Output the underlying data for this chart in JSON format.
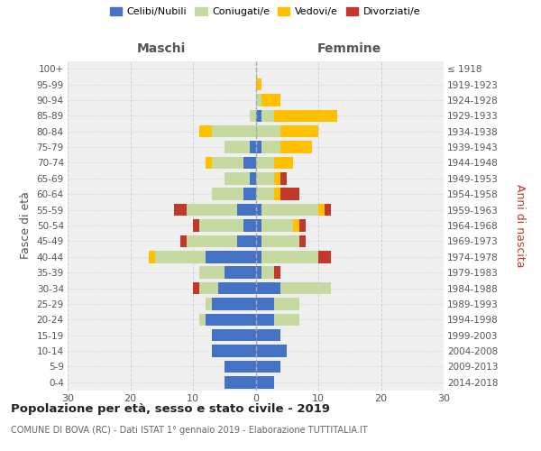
{
  "age_groups": [
    "0-4",
    "5-9",
    "10-14",
    "15-19",
    "20-24",
    "25-29",
    "30-34",
    "35-39",
    "40-44",
    "45-49",
    "50-54",
    "55-59",
    "60-64",
    "65-69",
    "70-74",
    "75-79",
    "80-84",
    "85-89",
    "90-94",
    "95-99",
    "100+"
  ],
  "birth_years": [
    "2014-2018",
    "2009-2013",
    "2004-2008",
    "1999-2003",
    "1994-1998",
    "1989-1993",
    "1984-1988",
    "1979-1983",
    "1974-1978",
    "1969-1973",
    "1964-1968",
    "1959-1963",
    "1954-1958",
    "1949-1953",
    "1944-1948",
    "1939-1943",
    "1934-1938",
    "1929-1933",
    "1924-1928",
    "1919-1923",
    "≤ 1918"
  ],
  "maschi_celibe": [
    5,
    5,
    7,
    7,
    8,
    7,
    6,
    5,
    8,
    3,
    2,
    3,
    2,
    1,
    2,
    1,
    0,
    0,
    0,
    0,
    0
  ],
  "maschi_coniugato": [
    0,
    0,
    0,
    0,
    1,
    1,
    3,
    4,
    8,
    8,
    7,
    8,
    5,
    4,
    5,
    4,
    7,
    1,
    0,
    0,
    0
  ],
  "maschi_vedovo": [
    0,
    0,
    0,
    0,
    0,
    0,
    0,
    0,
    1,
    0,
    0,
    0,
    0,
    0,
    1,
    0,
    2,
    0,
    0,
    0,
    0
  ],
  "maschi_divorziato": [
    0,
    0,
    0,
    0,
    0,
    0,
    1,
    0,
    0,
    1,
    1,
    2,
    0,
    0,
    0,
    0,
    0,
    0,
    0,
    0,
    0
  ],
  "femmine_celibe": [
    3,
    4,
    5,
    4,
    3,
    3,
    4,
    1,
    1,
    1,
    1,
    1,
    0,
    0,
    0,
    1,
    0,
    1,
    0,
    0,
    0
  ],
  "femmine_coniugato": [
    0,
    0,
    0,
    0,
    4,
    4,
    8,
    2,
    9,
    6,
    5,
    9,
    3,
    3,
    3,
    3,
    4,
    2,
    1,
    0,
    0
  ],
  "femmine_vedovo": [
    0,
    0,
    0,
    0,
    0,
    0,
    0,
    0,
    0,
    0,
    1,
    1,
    1,
    1,
    3,
    5,
    6,
    10,
    3,
    1,
    0
  ],
  "femmine_divorziato": [
    0,
    0,
    0,
    0,
    0,
    0,
    0,
    1,
    2,
    1,
    1,
    1,
    3,
    1,
    0,
    0,
    0,
    0,
    0,
    0,
    0
  ],
  "color_celibe": "#4472c4",
  "color_coniugato": "#c5d9a0",
  "color_vedovo": "#ffc000",
  "color_divorziato": "#c0392b",
  "title": "Popolazione per età, sesso e stato civile - 2019",
  "subtitle": "COMUNE DI BOVA (RC) - Dati ISTAT 1° gennaio 2019 - Elaborazione TUTTITALIA.IT",
  "label_maschi": "Maschi",
  "label_femmine": "Femmine",
  "ylabel_left": "Fasce di età",
  "ylabel_right": "Anni di nascita",
  "legend_labels": [
    "Celibi/Nubili",
    "Coniugati/e",
    "Vedovi/e",
    "Divorziati/e"
  ],
  "xlim": 30,
  "bg_color": "#efefef",
  "grid_color": "#cccccc"
}
